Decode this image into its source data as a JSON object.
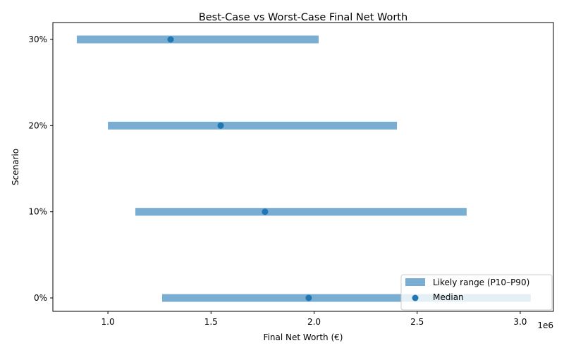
{
  "chart_data": {
    "type": "range-bar",
    "title": "Best-Case vs Worst-Case Final Net Worth",
    "xlabel": "Final Net Worth (€)",
    "ylabel": "Scenario",
    "x_offset_label": "1e6",
    "xlim": [
      733000,
      3161000
    ],
    "xticks": [
      1000000,
      1500000,
      2000000,
      2500000,
      3000000
    ],
    "xtick_labels": [
      "1.0",
      "1.5",
      "2.0",
      "2.5",
      "3.0"
    ],
    "categories": [
      "0%",
      "10%",
      "20%",
      "30%"
    ],
    "p10": [
      1263000,
      1133000,
      1000000,
      849000
    ],
    "p90": [
      3051000,
      2740000,
      2402000,
      2022000
    ],
    "median": [
      1974000,
      1762000,
      1547000,
      1304000
    ],
    "grid": false,
    "legend": {
      "placement": "lower right",
      "entries": [
        "Likely range (P10–P90)",
        "Median"
      ]
    },
    "colors": {
      "range": "#1f77b4",
      "range_alpha": 0.6,
      "median": "#1f77b4"
    }
  }
}
